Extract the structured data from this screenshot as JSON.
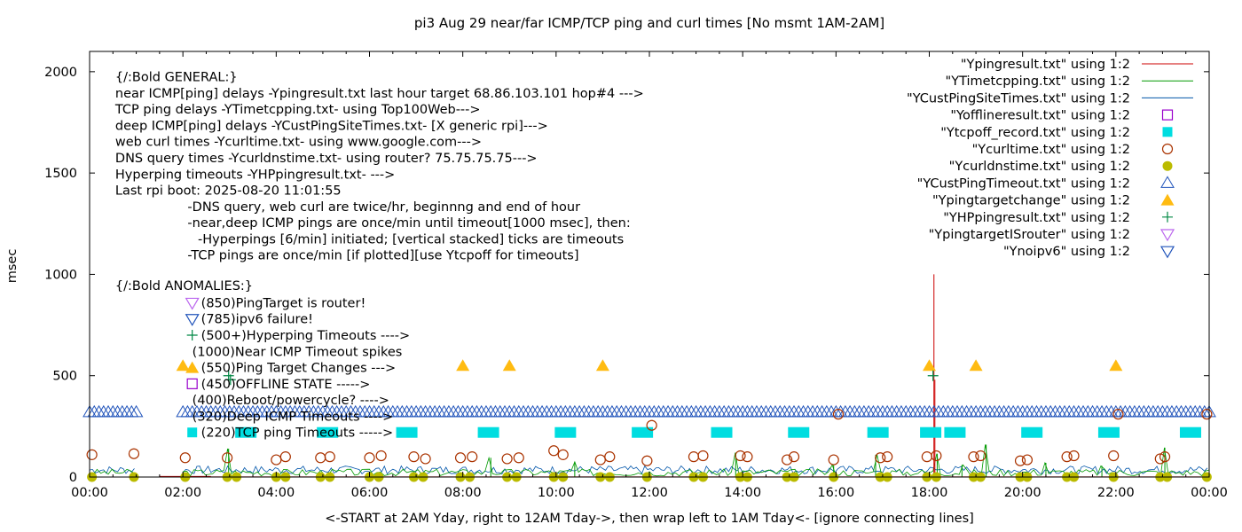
{
  "chart_data": {
    "type": "scatter",
    "title": "pi3 Aug 29  near/far ICMP/TCP ping and curl times [No msmt 1AM-2AM]",
    "xlabel": "<-START at 2AM Yday, right to 12AM Tday->, then wrap left to 1AM Tday<- [ignore connecting lines]",
    "ylabel": "msec",
    "xlim": [
      0,
      24
    ],
    "ylim": [
      0,
      2100
    ],
    "grid": false,
    "legend_position": "top-right",
    "x_ticks": [
      "00:00",
      "02:00",
      "04:00",
      "06:00",
      "08:00",
      "10:00",
      "12:00",
      "14:00",
      "16:00",
      "18:00",
      "20:00",
      "22:00",
      "00:00"
    ],
    "y_ticks": [
      0,
      500,
      1000,
      1500,
      2000
    ],
    "series": [
      {
        "name": "\"Ypingresult.txt\" using 1:2",
        "style": "line",
        "color": "#cc0000",
        "spikes": [
          [
            18.1,
            1000
          ],
          [
            18.12,
            480
          ]
        ]
      },
      {
        "name": "\"YTimetcpping.txt\" using 1:2",
        "style": "line",
        "color": "#009900",
        "spikes": [
          [
            2.98,
            140
          ],
          [
            8.6,
            95
          ],
          [
            10.4,
            75
          ],
          [
            13.85,
            120
          ],
          [
            15.95,
            60
          ],
          [
            16.85,
            110
          ],
          [
            18.17,
            115
          ],
          [
            18.7,
            60
          ],
          [
            19.22,
            160
          ],
          [
            20.5,
            70
          ],
          [
            21.7,
            55
          ],
          [
            23.05,
            145
          ]
        ]
      },
      {
        "name": "\"YCustPingSiteTimes.txt\" using 1:2",
        "style": "line",
        "color": "#0055aa",
        "band": [
          15,
          55
        ]
      },
      {
        "name": "\"Yofflineresult.txt\" using 1:2",
        "style": "open-square",
        "color": "#9900cc",
        "points": []
      },
      {
        "name": "\"Ytcpoff_record.txt\" using 1:2",
        "style": "filled-square",
        "color": "#00dde0",
        "y": 220,
        "x": [
          3.35,
          5.1,
          6.8,
          8.55,
          10.2,
          11.85,
          13.55,
          15.2,
          16.9,
          18.03,
          18.55,
          20.2,
          21.85,
          23.6
        ]
      },
      {
        "name": "\"Ycurltime.txt\" using 1:2",
        "style": "open-circle",
        "color": "#aa3300",
        "points": [
          [
            0.05,
            110
          ],
          [
            0.95,
            115
          ],
          [
            2.05,
            95
          ],
          [
            2.95,
            95
          ],
          [
            4.0,
            85
          ],
          [
            4.2,
            100
          ],
          [
            4.95,
            95
          ],
          [
            5.15,
            100
          ],
          [
            6.0,
            95
          ],
          [
            6.25,
            105
          ],
          [
            6.95,
            100
          ],
          [
            7.2,
            90
          ],
          [
            7.95,
            95
          ],
          [
            8.2,
            100
          ],
          [
            8.95,
            90
          ],
          [
            9.2,
            95
          ],
          [
            9.95,
            130
          ],
          [
            10.15,
            110
          ],
          [
            10.95,
            85
          ],
          [
            11.15,
            100
          ],
          [
            11.95,
            80
          ],
          [
            12.05,
            255
          ],
          [
            12.95,
            100
          ],
          [
            13.15,
            105
          ],
          [
            13.95,
            105
          ],
          [
            14.1,
            100
          ],
          [
            14.95,
            85
          ],
          [
            15.1,
            100
          ],
          [
            15.95,
            85
          ],
          [
            16.05,
            310
          ],
          [
            16.95,
            95
          ],
          [
            17.1,
            100
          ],
          [
            17.95,
            100
          ],
          [
            18.15,
            105
          ],
          [
            18.95,
            100
          ],
          [
            19.1,
            105
          ],
          [
            19.95,
            80
          ],
          [
            20.1,
            85
          ],
          [
            20.95,
            100
          ],
          [
            21.1,
            105
          ],
          [
            21.95,
            105
          ],
          [
            22.05,
            310
          ],
          [
            22.95,
            90
          ],
          [
            23.05,
            100
          ],
          [
            23.95,
            310
          ]
        ]
      },
      {
        "name": "\"Ycurldnstime.txt\" using 1:2",
        "style": "filled-circle",
        "color": "#bbbb00",
        "points": [
          [
            0.05,
            0
          ],
          [
            0.95,
            0
          ],
          [
            2.05,
            0
          ],
          [
            2.95,
            0
          ],
          [
            3.15,
            0
          ],
          [
            4.0,
            0
          ],
          [
            4.2,
            0
          ],
          [
            4.95,
            0
          ],
          [
            5.15,
            0
          ],
          [
            6.0,
            0
          ],
          [
            6.2,
            0
          ],
          [
            6.95,
            0
          ],
          [
            7.15,
            0
          ],
          [
            7.95,
            0
          ],
          [
            8.15,
            0
          ],
          [
            8.95,
            0
          ],
          [
            9.15,
            0
          ],
          [
            9.95,
            0
          ],
          [
            10.15,
            0
          ],
          [
            10.95,
            0
          ],
          [
            11.15,
            0
          ],
          [
            11.95,
            0
          ],
          [
            12.95,
            0
          ],
          [
            13.15,
            0
          ],
          [
            13.95,
            0
          ],
          [
            14.1,
            0
          ],
          [
            14.95,
            0
          ],
          [
            15.1,
            0
          ],
          [
            15.95,
            0
          ],
          [
            16.95,
            0
          ],
          [
            17.1,
            0
          ],
          [
            17.95,
            0
          ],
          [
            18.15,
            0
          ],
          [
            18.95,
            0
          ],
          [
            19.1,
            0
          ],
          [
            19.95,
            0
          ],
          [
            20.1,
            0
          ],
          [
            20.95,
            0
          ],
          [
            21.1,
            0
          ],
          [
            21.95,
            0
          ],
          [
            22.95,
            0
          ],
          [
            23.1,
            0
          ],
          [
            23.95,
            0
          ]
        ]
      },
      {
        "name": "\"YCustPingTimeout.txt\" using 1:2",
        "style": "open-triangle",
        "color": "#2255bb",
        "y": 320,
        "ranges": [
          [
            0.0,
            1.0
          ],
          [
            2.0,
            24.0
          ]
        ],
        "step": 0.1
      },
      {
        "name": "\"Ypingtargetchange\" using 1:2",
        "style": "filled-triangle",
        "color": "#ffbb11",
        "points": [
          [
            2.0,
            550
          ],
          [
            8.0,
            550
          ],
          [
            9.0,
            550
          ],
          [
            11.0,
            550
          ],
          [
            18.0,
            550
          ],
          [
            19.0,
            550
          ],
          [
            22.0,
            550
          ]
        ]
      },
      {
        "name": "\"YHPpingresult.txt\" using 1:2",
        "style": "plus",
        "color": "#008844",
        "points": [
          [
            2.98,
            500
          ],
          [
            3.02,
            480
          ],
          [
            18.08,
            500
          ]
        ]
      },
      {
        "name": "\"YpingtargetISrouter\" using 1:2",
        "style": "down-triangle",
        "color": "#bb66ee",
        "points": []
      },
      {
        "name": "\"Ynoipv6\" using 1:2",
        "style": "down-triangle",
        "color": "#2255bb",
        "points": []
      }
    ],
    "annotations": [
      {
        "text": "{/:Bold GENERAL:}",
        "x": 0.55,
        "y": 1975
      },
      {
        "text": "near ICMP[ping] delays -Ypingresult.txt last hour target 68.86.103.101 hop#4 --->",
        "x": 0.55,
        "y": 1895
      },
      {
        "text": "TCP ping delays -YTimetcpping.txt- using Top100Web--->",
        "x": 0.55,
        "y": 1815
      },
      {
        "text": "deep ICMP[ping] delays -YCustPingSiteTimes.txt- [X generic rpi]--->",
        "x": 0.55,
        "y": 1735
      },
      {
        "text": "web curl times -Ycurltime.txt- using www.google.com--->",
        "x": 0.55,
        "y": 1655
      },
      {
        "text": "DNS query times -Ycurldnstime.txt- using router? 75.75.75.75--->",
        "x": 0.55,
        "y": 1575
      },
      {
        "text": "Hyperping timeouts -YHPpingresult.txt- --->",
        "x": 0.55,
        "y": 1495
      },
      {
        "text": "Last rpi boot: 2025-08-20 11:01:55",
        "x": 0.55,
        "y": 1415
      },
      {
        "text": "-DNS query, web curl are twice/hr, beginnng and end of hour",
        "x": 2.1,
        "y": 1335
      },
      {
        "text": "-near,deep ICMP pings are once/min until timeout[1000 msec], then:",
        "x": 2.1,
        "y": 1255
      },
      {
        "text": "-Hyperpings [6/min] initiated; [vertical stacked] ticks are timeouts",
        "x": 2.32,
        "y": 1175
      },
      {
        "text": "-TCP pings are once/min [if plotted][use Ytcpoff for timeouts]",
        "x": 2.1,
        "y": 1095
      },
      {
        "text": "{/:Bold ANOMALIES:}",
        "x": 0.55,
        "y": 945
      },
      {
        "text": "(850)PingTarget is router!",
        "x": 2.2,
        "y": 860,
        "marker": "down-triangle",
        "marker_color": "#bb66ee"
      },
      {
        "text": "(785)ipv6 failure!",
        "x": 2.2,
        "y": 780,
        "marker": "down-triangle",
        "marker_color": "#2255bb"
      },
      {
        "text": "(500+)Hyperping Timeouts ---->",
        "x": 2.2,
        "y": 700,
        "marker": "plus",
        "marker_color": "#008844"
      },
      {
        "text": "(1000)Near ICMP Timeout spikes",
        "x": 2.2,
        "y": 620
      },
      {
        "text": "(550)Ping Target Changes --->",
        "x": 2.2,
        "y": 540,
        "marker": "filled-triangle",
        "marker_color": "#ffbb11"
      },
      {
        "text": "(450)OFFLINE STATE ----->",
        "x": 2.2,
        "y": 460,
        "marker": "open-square",
        "marker_color": "#9900cc"
      },
      {
        "text": "(400)Reboot/powercycle? ---->",
        "x": 2.2,
        "y": 380
      },
      {
        "text": "(320)Deep ICMP Timeouts ---->",
        "x": 2.2,
        "y": 300
      },
      {
        "text": "(220)TCP ping Timeouts ----->",
        "x": 2.2,
        "y": 220,
        "marker": "filled-square",
        "marker_color": "#00dde0"
      }
    ]
  }
}
